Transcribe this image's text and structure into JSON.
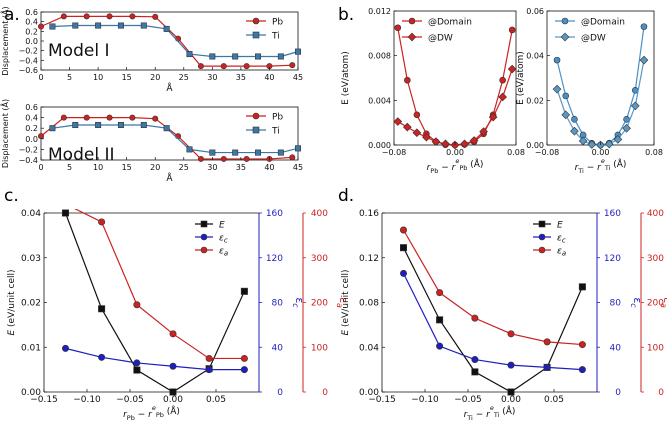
{
  "panel_labels": [
    "a.",
    "b.",
    "c.",
    "d."
  ],
  "colors": {
    "red": "#cc2222",
    "steel": "#3a78a8",
    "black": "#111111",
    "blue": "#1f1fbf",
    "light_blue": "#4a90c8",
    "light_steel": "#5a98c4"
  },
  "chart_data": [
    {
      "id": "a1",
      "type": "line",
      "model_label": "Model I",
      "xlabel": "Å",
      "ylabel": "Displacement (Å)",
      "xlim": [
        0,
        45
      ],
      "ylim": [
        -0.6,
        0.6
      ],
      "xticks": [
        "0",
        "5",
        "10",
        "15",
        "20",
        "25",
        "30",
        "35",
        "40",
        "45"
      ],
      "yticks": [
        "-0.6",
        "-0.4",
        "-0.2",
        "0.0",
        "0.2",
        "0.4",
        "0.6"
      ],
      "legend": [
        "Pb",
        "Ti"
      ],
      "series": [
        {
          "name": "Pb",
          "marker": "circle",
          "color": "#cc2222",
          "x": [
            0,
            4,
            8,
            12,
            16,
            20,
            24,
            28,
            32,
            36,
            40,
            44
          ],
          "y": [
            0.3,
            0.51,
            0.51,
            0.51,
            0.51,
            0.5,
            0.05,
            -0.52,
            -0.52,
            -0.52,
            -0.52,
            -0.5
          ]
        },
        {
          "name": "Ti",
          "marker": "square",
          "color": "#3a78a8",
          "x": [
            2,
            6,
            10,
            14,
            18,
            22,
            26,
            30,
            34,
            38,
            42,
            45
          ],
          "y": [
            0.3,
            0.32,
            0.32,
            0.32,
            0.32,
            0.25,
            -0.27,
            -0.32,
            -0.32,
            -0.32,
            -0.32,
            -0.22
          ]
        }
      ]
    },
    {
      "id": "a2",
      "type": "line",
      "model_label": "Model II",
      "xlabel": "Å",
      "ylabel": "Displacement (Å)",
      "xlim": [
        0,
        45
      ],
      "ylim": [
        -0.4,
        0.6
      ],
      "xticks": [
        "0",
        "5",
        "10",
        "15",
        "20",
        "25",
        "30",
        "35",
        "40",
        "45"
      ],
      "yticks": [
        "-0.4",
        "-0.2",
        "0.0",
        "0.2",
        "0.4",
        "0.6"
      ],
      "legend": [
        "Pb",
        "Ti"
      ],
      "series": [
        {
          "name": "Pb",
          "marker": "circle",
          "color": "#cc2222",
          "x": [
            0,
            4,
            8,
            12,
            16,
            20,
            24,
            28,
            32,
            36,
            40,
            44
          ],
          "y": [
            0.05,
            0.4,
            0.4,
            0.4,
            0.4,
            0.38,
            0.05,
            -0.38,
            -0.38,
            -0.38,
            -0.38,
            -0.35
          ]
        },
        {
          "name": "Ti",
          "marker": "square",
          "color": "#3a78a8",
          "x": [
            2,
            6,
            10,
            14,
            18,
            22,
            26,
            30,
            34,
            38,
            42,
            45
          ],
          "y": [
            0.2,
            0.26,
            0.26,
            0.26,
            0.26,
            0.2,
            -0.2,
            -0.26,
            -0.26,
            -0.26,
            -0.26,
            -0.18
          ]
        }
      ]
    },
    {
      "id": "b1",
      "type": "line",
      "ylabel": "E (eV/atom)",
      "xlabel": "r_Pb − r^e_Pb (Å)",
      "xlim": [
        -0.08,
        0.08
      ],
      "ylim": [
        0,
        0.012
      ],
      "xticks": [
        "-0.08",
        "0.00",
        "0.08"
      ],
      "yticks": [
        "0.000",
        "0.004",
        "0.008",
        "0.012"
      ],
      "legend": [
        "@Domain",
        "@DW"
      ],
      "series": [
        {
          "name": "@Domain",
          "marker": "circle",
          "color": "#cc2222",
          "x": [
            -0.075,
            -0.0625,
            -0.05,
            -0.0375,
            -0.025,
            -0.0125,
            0,
            0.0125,
            0.025,
            0.0375,
            0.05,
            0.0625,
            0.075
          ],
          "y": [
            0.0105,
            0.0058,
            0.0027,
            0.001,
            0.0003,
            3e-05,
            0,
            5e-05,
            0.0003,
            0.001,
            0.0027,
            0.0058,
            0.0103
          ]
        },
        {
          "name": "@DW",
          "marker": "diamond",
          "color": "#cc2222",
          "x": [
            -0.075,
            -0.0625,
            -0.05,
            -0.0375,
            -0.025,
            -0.0125,
            0,
            0.0125,
            0.025,
            0.0375,
            0.05,
            0.0625,
            0.075
          ],
          "y": [
            0.0021,
            0.0016,
            0.0011,
            0.0007,
            0.0003,
            0.0001,
            0,
            0.0001,
            0.0004,
            0.0012,
            0.0025,
            0.0043,
            0.0068
          ]
        }
      ]
    },
    {
      "id": "b2",
      "type": "line",
      "ylabel": "E (eV/atom)",
      "xlabel": "r_Ti − r^e_Ti (Å)",
      "xlim": [
        -0.08,
        0.08
      ],
      "ylim": [
        0,
        0.06
      ],
      "xticks": [
        "-0.08",
        "0.00",
        "0.08"
      ],
      "yticks": [
        "0.00",
        "0.02",
        "0.04",
        "0.06"
      ],
      "legend": [
        "@Domain",
        "@DW"
      ],
      "series": [
        {
          "name": "@Domain",
          "marker": "circle",
          "color": "#4a90c8",
          "x": [
            -0.065,
            -0.052,
            -0.039,
            -0.026,
            -0.013,
            0,
            0.013,
            0.026,
            0.039,
            0.052,
            0.065
          ],
          "y": [
            0.038,
            0.022,
            0.0115,
            0.0045,
            0.0008,
            0,
            0.0008,
            0.0045,
            0.0115,
            0.0245,
            0.053
          ]
        },
        {
          "name": "@DW",
          "marker": "diamond",
          "color": "#5a98c4",
          "x": [
            -0.065,
            -0.052,
            -0.039,
            -0.026,
            -0.013,
            0,
            0.013,
            0.026,
            0.039,
            0.052,
            0.065
          ],
          "y": [
            0.025,
            0.0135,
            0.0062,
            0.0018,
            0.0002,
            0,
            0.0004,
            0.0025,
            0.0075,
            0.0175,
            0.038
          ]
        }
      ]
    },
    {
      "id": "c",
      "type": "line",
      "xlabel": "r_Pb − r^e_Pb (Å)",
      "ylabel_left": "E (eV/unit cell)",
      "ylabel_blue": "ε_c",
      "ylabel_red": "ε_a",
      "xlim": [
        -0.15,
        0.1
      ],
      "ylim_left": [
        0,
        0.04
      ],
      "ylim_blue": [
        0,
        160
      ],
      "ylim_red": [
        0,
        400
      ],
      "xticks": [
        "-0.15",
        "-0.10",
        "-0.05",
        "0.00",
        "0.05"
      ],
      "yticks_left": [
        "0.00",
        "0.01",
        "0.02",
        "0.03",
        "0.04"
      ],
      "yticks_blue": [
        "0",
        "40",
        "80",
        "120",
        "160"
      ],
      "yticks_red": [
        "0",
        "100",
        "200",
        "300",
        "400"
      ],
      "legend": [
        "E",
        "ε_c",
        "ε_a"
      ],
      "series": [
        {
          "name": "E",
          "axis": "left",
          "marker": "square",
          "color": "#111111",
          "x": [
            -0.125,
            -0.083,
            -0.042,
            0,
            0.042,
            0.083
          ],
          "y": [
            0.04,
            0.0186,
            0.0049,
            0.0,
            0.0052,
            0.0225
          ]
        },
        {
          "name": "ε_c",
          "axis": "blue",
          "marker": "circle",
          "color": "#1f1fbf",
          "x": [
            -0.125,
            -0.083,
            -0.042,
            0,
            0.042,
            0.083
          ],
          "y": [
            39,
            31,
            26,
            23,
            20,
            20
          ]
        },
        {
          "name": "ε_a",
          "axis": "red",
          "marker": "circle",
          "color": "#cc2222",
          "x": [
            -0.125,
            -0.083,
            -0.042,
            0,
            0.042,
            0.083
          ],
          "y": [
            420,
            380,
            195,
            130,
            75,
            75
          ]
        }
      ]
    },
    {
      "id": "d",
      "type": "line",
      "xlabel": "r_Ti − r^e_Ti (Å)",
      "ylabel_left": "E (eV/unit cell)",
      "ylabel_blue": "ε_c",
      "ylabel_red": "ε_a",
      "xlim": [
        -0.15,
        0.1
      ],
      "ylim_left": [
        0,
        0.16
      ],
      "ylim_blue": [
        0,
        160
      ],
      "ylim_red": [
        0,
        400
      ],
      "xticks": [
        "-0.15",
        "-0.10",
        "-0.05",
        "0.00",
        "0.05"
      ],
      "yticks_left": [
        "0.00",
        "0.04",
        "0.08",
        "0.12",
        "0.16"
      ],
      "yticks_blue": [
        "0",
        "40",
        "80",
        "120",
        "160"
      ],
      "yticks_red": [
        "0",
        "100",
        "200",
        "300",
        "400"
      ],
      "legend": [
        "E",
        "ε_c",
        "ε_a"
      ],
      "series": [
        {
          "name": "E",
          "axis": "left",
          "marker": "square",
          "color": "#111111",
          "x": [
            -0.125,
            -0.083,
            -0.042,
            0,
            0.042,
            0.083
          ],
          "y": [
            0.129,
            0.0645,
            0.018,
            0.0,
            0.022,
            0.094
          ]
        },
        {
          "name": "ε_c",
          "axis": "blue",
          "marker": "circle",
          "color": "#1f1fbf",
          "x": [
            -0.125,
            -0.083,
            -0.042,
            0,
            0.042,
            0.083
          ],
          "y": [
            106,
            41,
            29,
            24,
            22,
            20
          ]
        },
        {
          "name": "ε_a",
          "axis": "red",
          "marker": "circle",
          "color": "#cc2222",
          "x": [
            -0.125,
            -0.083,
            -0.042,
            0,
            0.042,
            0.083
          ],
          "y": [
            362,
            222,
            165,
            130,
            112,
            106
          ]
        }
      ]
    }
  ]
}
